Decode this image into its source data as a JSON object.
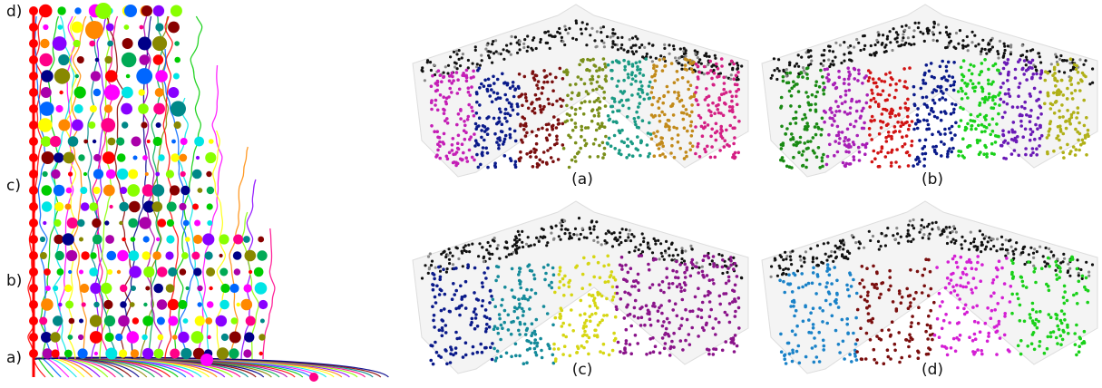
{
  "tree_row_labels": [
    "d)",
    "c)",
    "b)",
    "a)"
  ],
  "panels": [
    {
      "label": "(a)",
      "colors": [
        "#c41fb6",
        "#0a1a8a",
        "#7a0f0f",
        "#7a8f1a",
        "#1a9a84",
        "#c28a1a",
        "#d41f84"
      ]
    },
    {
      "label": "(b)",
      "colors": [
        "#1a8a14",
        "#a81fb6",
        "#d11414",
        "#0a1a8a",
        "#1ad11a",
        "#6a1ab6",
        "#b0b018"
      ]
    },
    {
      "label": "(c)",
      "colors": [
        "#0a1a8a",
        "#148a9a",
        "#d6d614",
        "#8a148a",
        "#8a148a"
      ]
    },
    {
      "label": "(d)",
      "colors": [
        "#1a82c8",
        "#7a0f0f",
        "#d41fd4",
        "#1ad11a"
      ]
    }
  ],
  "palette": [
    "#ff0000",
    "#00cc00",
    "#0066ff",
    "#ff00ff",
    "#00e5e5",
    "#ffff00",
    "#ff8800",
    "#8800ff",
    "#88ff00",
    "#ff0088",
    "#008888",
    "#880000",
    "#000088",
    "#888800",
    "#00aa55",
    "#aa00aa"
  ]
}
